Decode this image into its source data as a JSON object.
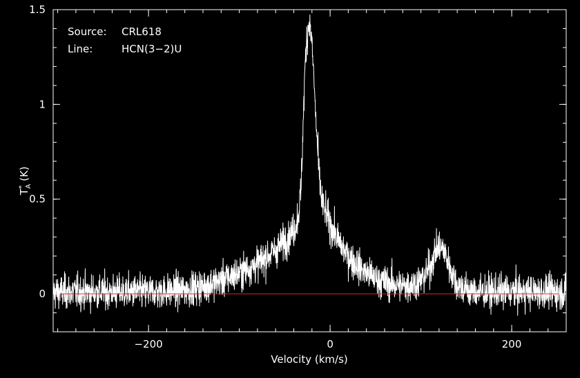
{
  "chart_data": {
    "type": "line",
    "xlabel": "Velocity (km/s)",
    "ylabel": {
      "symbol": "T",
      "superscript": "*",
      "subscript": "A",
      "unit": "(K)"
    },
    "xlim": [
      -305,
      260
    ],
    "ylim": [
      -0.2,
      1.5
    ],
    "xticks": [
      {
        "value": -200,
        "label": "−200"
      },
      {
        "value": 0,
        "label": "0"
      },
      {
        "value": 200,
        "label": "200"
      }
    ],
    "yticks": [
      {
        "value": 0,
        "label": "0"
      },
      {
        "value": 0.5,
        "label": "0.5"
      },
      {
        "value": 1,
        "label": "1"
      },
      {
        "value": 1.5,
        "label": "1.5"
      }
    ],
    "info": [
      {
        "label": "Source:",
        "value": "CRL618"
      },
      {
        "label": "Line:",
        "value": "HCN(3−2)U"
      }
    ],
    "baseline": 0,
    "grid": false,
    "noise_rms": 0.045,
    "series": [
      {
        "x": [
          -305,
          -200,
          -160,
          -140,
          -120,
          -100,
          -80,
          -60,
          -50,
          -42,
          -38,
          -35,
          -32,
          -30,
          -28,
          -26,
          -24,
          -22,
          -20,
          -18,
          -16,
          -14,
          -12,
          -10,
          -8,
          -5,
          0,
          10,
          20,
          30,
          40,
          50,
          60,
          70,
          80,
          90,
          100,
          110,
          115,
          120,
          125,
          130,
          135,
          140,
          150,
          160,
          180,
          200,
          260
        ],
        "y": [
          0.01,
          0.01,
          0.02,
          0.04,
          0.07,
          0.11,
          0.16,
          0.23,
          0.28,
          0.32,
          0.36,
          0.42,
          0.55,
          0.85,
          1.15,
          1.33,
          1.42,
          1.41,
          1.32,
          1.15,
          0.95,
          0.78,
          0.62,
          0.52,
          0.47,
          0.43,
          0.37,
          0.27,
          0.2,
          0.15,
          0.11,
          0.08,
          0.06,
          0.05,
          0.04,
          0.05,
          0.07,
          0.14,
          0.21,
          0.25,
          0.23,
          0.17,
          0.1,
          0.05,
          0.02,
          0.01,
          0.01,
          0.01,
          0.01
        ]
      }
    ]
  },
  "colors": {
    "background": "#000000",
    "foreground": "#ffffff",
    "baseline": "#d03020"
  }
}
